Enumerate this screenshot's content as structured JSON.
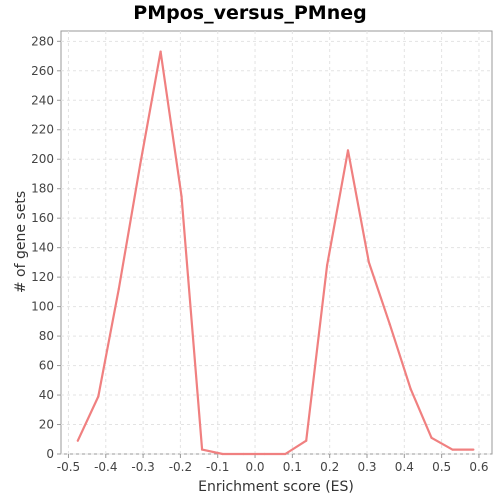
{
  "chart_data": {
    "type": "line",
    "title": "PMpos_versus_PMneg",
    "xlabel": "Enrichment score (ES)",
    "ylabel": "# of gene sets",
    "xlim": [
      -0.52,
      0.635
    ],
    "ylim": [
      0,
      287
    ],
    "grid": true,
    "x_ticks": [
      "-0.5",
      "-0.4",
      "-0.3",
      "-0.2",
      "-0.1",
      "0.0",
      "0.1",
      "0.2",
      "0.3",
      "0.4",
      "0.5",
      "0.6"
    ],
    "y_ticks": [
      "0",
      "20",
      "40",
      "60",
      "80",
      "100",
      "120",
      "140",
      "160",
      "180",
      "200",
      "220",
      "240",
      "260",
      "280"
    ],
    "series": [
      {
        "color": "#f08080",
        "x": [
          -0.475,
          -0.42,
          -0.365,
          -0.308,
          -0.253,
          -0.197,
          -0.142,
          -0.087,
          -0.031,
          0.025,
          0.081,
          0.137,
          0.193,
          0.249,
          0.305,
          0.361,
          0.417,
          0.473,
          0.529,
          0.585
        ],
        "y": [
          9,
          39,
          112,
          196,
          273,
          175,
          3,
          0,
          0,
          0,
          0,
          9,
          128,
          206,
          130,
          88,
          44,
          11,
          3,
          3
        ]
      }
    ]
  }
}
